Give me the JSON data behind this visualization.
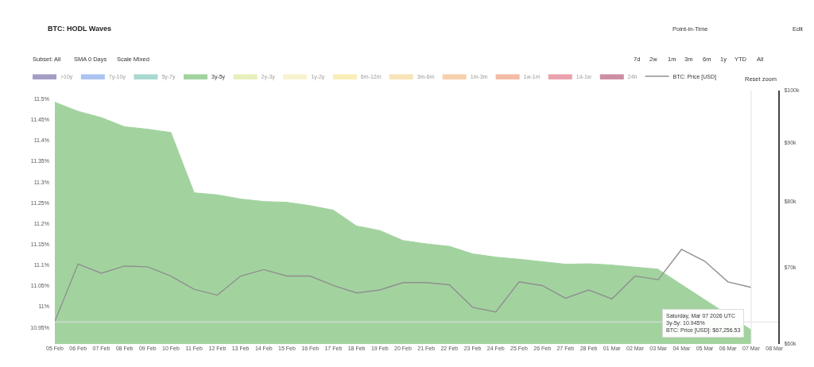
{
  "chart_data": {
    "type": "area",
    "title": "BTC: HODL Waves",
    "x": [
      "2026-02-05",
      "2026-02-06",
      "2026-02-07",
      "2026-02-08",
      "2026-02-09",
      "2026-02-10",
      "2026-02-11",
      "2026-02-12",
      "2026-02-13",
      "2026-02-14",
      "2026-02-15",
      "2026-02-16",
      "2026-02-17",
      "2026-02-18",
      "2026-02-19",
      "2026-02-20",
      "2026-02-21",
      "2026-02-22",
      "2026-02-23",
      "2026-02-24",
      "2026-02-25",
      "2026-02-26",
      "2026-02-27",
      "2026-02-28",
      "2026-03-01",
      "2026-03-02",
      "2026-03-03",
      "2026-03-04",
      "2026-03-05",
      "2026-03-06",
      "2026-03-07"
    ],
    "series": [
      {
        "name": ">10y",
        "color": "#4b3f8c",
        "values": [
          null,
          null,
          null,
          null,
          null,
          null,
          null,
          null,
          null,
          null,
          null,
          null,
          null,
          null,
          null,
          null,
          null,
          null,
          null,
          null,
          null,
          null,
          null,
          null,
          null,
          null,
          null,
          null,
          null,
          null,
          null
        ]
      },
      {
        "name": "7y-10y",
        "color": "#5b8ae6",
        "values": [
          null,
          null,
          null,
          null,
          null,
          null,
          null,
          null,
          null,
          null,
          null,
          null,
          null,
          null,
          null,
          null,
          null,
          null,
          null,
          null,
          null,
          null,
          null,
          null,
          null,
          null,
          null,
          null,
          null,
          null,
          null
        ]
      },
      {
        "name": "5y-7y",
        "color": "#56b3a3",
        "values": [
          null,
          null,
          null,
          null,
          null,
          null,
          null,
          null,
          null,
          null,
          null,
          null,
          null,
          null,
          null,
          null,
          null,
          null,
          null,
          null,
          null,
          null,
          null,
          null,
          null,
          null,
          null,
          null,
          null,
          null,
          null
        ]
      },
      {
        "name": "3y-5y",
        "color": "#a2d39f",
        "values": [
          11.492,
          11.47,
          11.455,
          11.433,
          11.427,
          11.419,
          11.274,
          11.269,
          11.259,
          11.253,
          11.251,
          11.243,
          11.232,
          11.194,
          11.183,
          11.159,
          11.151,
          11.145,
          11.127,
          11.119,
          11.114,
          11.108,
          11.102,
          11.103,
          11.1,
          11.095,
          11.09,
          null,
          null,
          null,
          10.945
        ]
      },
      {
        "name": "2y-3y",
        "color": "#d2e07c",
        "values": [
          null,
          null,
          null,
          null,
          null,
          null,
          null,
          null,
          null,
          null,
          null,
          null,
          null,
          null,
          null,
          null,
          null,
          null,
          null,
          null,
          null,
          null,
          null,
          null,
          null,
          null,
          null,
          null,
          null,
          null,
          null
        ]
      },
      {
        "name": "1y-2y",
        "color": "#f1e8a2",
        "values": [
          null,
          null,
          null,
          null,
          null,
          null,
          null,
          null,
          null,
          null,
          null,
          null,
          null,
          null,
          null,
          null,
          null,
          null,
          null,
          null,
          null,
          null,
          null,
          null,
          null,
          null,
          null,
          null,
          null,
          null,
          null
        ]
      },
      {
        "name": "6m-12m",
        "color": "#f5df72",
        "values": [
          null,
          null,
          null,
          null,
          null,
          null,
          null,
          null,
          null,
          null,
          null,
          null,
          null,
          null,
          null,
          null,
          null,
          null,
          null,
          null,
          null,
          null,
          null,
          null,
          null,
          null,
          null,
          null,
          null,
          null,
          null
        ]
      },
      {
        "name": "3m-6m",
        "color": "#f4c874",
        "values": [
          null,
          null,
          null,
          null,
          null,
          null,
          null,
          null,
          null,
          null,
          null,
          null,
          null,
          null,
          null,
          null,
          null,
          null,
          null,
          null,
          null,
          null,
          null,
          null,
          null,
          null,
          null,
          null,
          null,
          null,
          null
        ]
      },
      {
        "name": "1m-3m",
        "color": "#f0a35c",
        "values": [
          null,
          null,
          null,
          null,
          null,
          null,
          null,
          null,
          null,
          null,
          null,
          null,
          null,
          null,
          null,
          null,
          null,
          null,
          null,
          null,
          null,
          null,
          null,
          null,
          null,
          null,
          null,
          null,
          null,
          null,
          null
        ]
      },
      {
        "name": "1w-1m",
        "color": "#ea7a52",
        "values": [
          null,
          null,
          null,
          null,
          null,
          null,
          null,
          null,
          null,
          null,
          null,
          null,
          null,
          null,
          null,
          null,
          null,
          null,
          null,
          null,
          null,
          null,
          null,
          null,
          null,
          null,
          null,
          null,
          null,
          null,
          null
        ]
      },
      {
        "name": "1d-1w",
        "color": "#d6475f",
        "values": [
          null,
          null,
          null,
          null,
          null,
          null,
          null,
          null,
          null,
          null,
          null,
          null,
          null,
          null,
          null,
          null,
          null,
          null,
          null,
          null,
          null,
          null,
          null,
          null,
          null,
          null,
          null,
          null,
          null,
          null,
          null
        ]
      },
      {
        "name": "24h",
        "color": "#9c1f4b",
        "values": [
          null,
          null,
          null,
          null,
          null,
          null,
          null,
          null,
          null,
          null,
          null,
          null,
          null,
          null,
          null,
          null,
          null,
          null,
          null,
          null,
          null,
          null,
          null,
          null,
          null,
          null,
          null,
          null,
          null,
          null,
          null
        ]
      },
      {
        "name": "BTC: Price [USD]",
        "color": "#8f8f8f",
        "type": "line",
        "axis": "y2",
        "values": [
          62800,
          70500,
          69200,
          70200,
          70100,
          68800,
          67000,
          66200,
          68800,
          69700,
          68800,
          68800,
          67500,
          66500,
          66900,
          67900,
          67900,
          67600,
          64600,
          64000,
          68000,
          67500,
          65800,
          66900,
          65700,
          68800,
          68300,
          72600,
          70900,
          68000,
          67256.53
        ]
      }
    ],
    "xlim": [
      "2026-02-05",
      "2026-03-08T04:00"
    ],
    "xticks": [
      {
        "value": "2026-02-05",
        "label": "05 Feb"
      },
      {
        "value": "2026-02-06",
        "label": "06 Feb"
      },
      {
        "value": "2026-02-07",
        "label": "07 Feb"
      },
      {
        "value": "2026-02-08",
        "label": "08 Feb"
      },
      {
        "value": "2026-02-09",
        "label": "09 Feb"
      },
      {
        "value": "2026-02-10",
        "label": "10 Feb"
      },
      {
        "value": "2026-02-11",
        "label": "11 Feb"
      },
      {
        "value": "2026-02-12",
        "label": "12 Feb"
      },
      {
        "value": "2026-02-13",
        "label": "13 Feb"
      },
      {
        "value": "2026-02-14",
        "label": "14 Feb"
      },
      {
        "value": "2026-02-15",
        "label": "15 Feb"
      },
      {
        "value": "2026-02-16",
        "label": "16 Feb"
      },
      {
        "value": "2026-02-17",
        "label": "17 Feb"
      },
      {
        "value": "2026-02-18",
        "label": "18 Feb"
      },
      {
        "value": "2026-02-19",
        "label": "19 Feb"
      },
      {
        "value": "2026-02-20",
        "label": "20 Feb"
      },
      {
        "value": "2026-02-21",
        "label": "21 Feb"
      },
      {
        "value": "2026-02-22",
        "label": "22 Feb"
      },
      {
        "value": "2026-02-23",
        "label": "23 Feb"
      },
      {
        "value": "2026-02-24",
        "label": "24 Feb"
      },
      {
        "value": "2026-02-25",
        "label": "25 Feb"
      },
      {
        "value": "2026-02-26",
        "label": "26 Feb"
      },
      {
        "value": "2026-02-27",
        "label": "27 Feb"
      },
      {
        "value": "2026-02-28",
        "label": "28 Feb"
      },
      {
        "value": "2026-03-01",
        "label": "01 Mar"
      },
      {
        "value": "2026-03-02",
        "label": "02 Mar"
      },
      {
        "value": "2026-03-03",
        "label": "03 Mar"
      },
      {
        "value": "2026-03-04",
        "label": "04 Mar"
      },
      {
        "value": "2026-03-05",
        "label": "05 Mar"
      },
      {
        "value": "2026-03-06",
        "label": "06 Mar"
      },
      {
        "value": "2026-03-07",
        "label": "07 Mar"
      },
      {
        "value": "2026-03-08",
        "label": "08 Mar"
      }
    ],
    "ylim": [
      10.91,
      11.52
    ],
    "yticks": [
      {
        "value": 10.95,
        "label": "10.95%"
      },
      {
        "value": 11,
        "label": "11%"
      },
      {
        "value": 11.05,
        "label": "11.05%"
      },
      {
        "value": 11.1,
        "label": "11.1%"
      },
      {
        "value": 11.15,
        "label": "11.15%"
      },
      {
        "value": 11.2,
        "label": "11.2%"
      },
      {
        "value": 11.25,
        "label": "11.25%"
      },
      {
        "value": 11.3,
        "label": "11.3%"
      },
      {
        "value": 11.35,
        "label": "11.35%"
      },
      {
        "value": 11.4,
        "label": "11.4%"
      },
      {
        "value": 11.45,
        "label": "11.45%"
      },
      {
        "value": 11.5,
        "label": "11.5%"
      }
    ],
    "y2lim": [
      60000,
      100000
    ],
    "y2ticks": [
      {
        "value": 60000,
        "label": "$60k"
      },
      {
        "value": 70000,
        "label": "$70k"
      },
      {
        "value": 80000,
        "label": "$80k"
      },
      {
        "value": 90000,
        "label": "$90k"
      },
      {
        "value": 100000,
        "label": "$100k"
      }
    ],
    "log": "y2",
    "grid": false,
    "legend": "top left",
    "ref_lines": [
      {
        "axis": "x",
        "value": "2026-03-07",
        "color": "#e2e2e2"
      },
      {
        "axis": "y",
        "value": 10.963,
        "color": "#e2e2e2"
      }
    ],
    "annotations": [
      "Point-in-Time",
      "Edit",
      "Subset: All",
      "SMA 0 Days",
      "Scale Mixed",
      "7d",
      "2w",
      "1m",
      "3m",
      "6m",
      "1y",
      "YTD",
      "All",
      "Reset zoom",
      {
        "text": "Saturday, Mar 07 2026 UTC\n3y-5y: 10.945%\nBTC: Price [USD]: $67,256.53",
        "x": "2026-03-07",
        "y": 10.945
      }
    ]
  }
}
